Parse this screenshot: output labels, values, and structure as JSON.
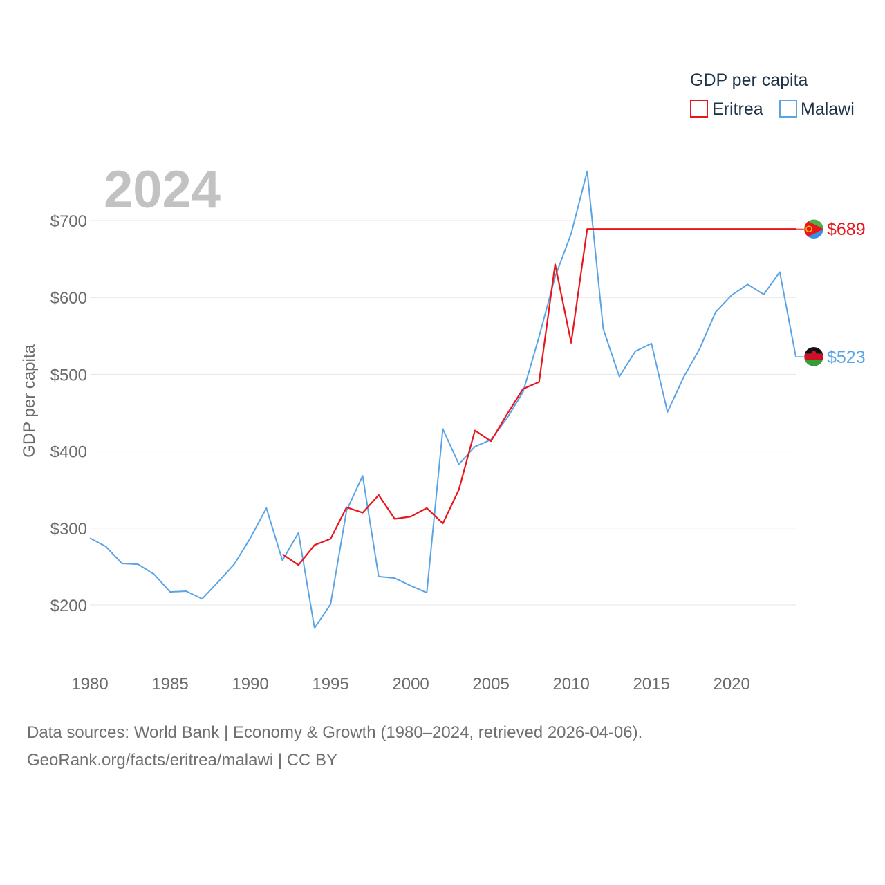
{
  "chart_data": {
    "type": "line",
    "title": "GDP per capita",
    "legend_title": "GDP per capita",
    "year_label": "2024",
    "ylabel": "GDP per capita",
    "xlabel": "",
    "xlim": [
      1980,
      2024
    ],
    "ylim": [
      140,
      780
    ],
    "x_ticks": [
      1980,
      1985,
      1990,
      1995,
      2000,
      2005,
      2010,
      2015,
      2020
    ],
    "y_ticks": [
      200,
      300,
      400,
      500,
      600,
      700
    ],
    "y_tick_labels": [
      "$200",
      "$300",
      "$400",
      "$500",
      "$600",
      "$700"
    ],
    "grid": true,
    "legend_position": "top-right",
    "series": [
      {
        "name": "Eritrea",
        "color": "#e8161b",
        "flag": "eritrea-flag",
        "end_label": "$689",
        "x": [
          1992,
          1993,
          1994,
          1995,
          1996,
          1997,
          1998,
          1999,
          2000,
          2001,
          2002,
          2003,
          2004,
          2005,
          2006,
          2007,
          2008,
          2009,
          2010,
          2011,
          2024
        ],
        "values": [
          266,
          252,
          278,
          286,
          327,
          320,
          343,
          312,
          315,
          326,
          306,
          350,
          427,
          413,
          448,
          481,
          490,
          643,
          541,
          689,
          689
        ]
      },
      {
        "name": "Malawi",
        "color": "#5aa4e6",
        "flag": "malawi-flag",
        "end_label": "$523",
        "x": [
          1980,
          1981,
          1982,
          1983,
          1984,
          1985,
          1986,
          1987,
          1988,
          1989,
          1990,
          1991,
          1992,
          1993,
          1994,
          1995,
          1996,
          1997,
          1998,
          1999,
          2000,
          2001,
          2002,
          2003,
          2004,
          2005,
          2006,
          2007,
          2008,
          2009,
          2010,
          2011,
          2012,
          2013,
          2014,
          2015,
          2016,
          2017,
          2018,
          2019,
          2020,
          2021,
          2022,
          2023,
          2024
        ],
        "values": [
          287,
          276,
          254,
          253,
          240,
          217,
          218,
          208,
          230,
          253,
          287,
          326,
          258,
          294,
          170,
          201,
          323,
          368,
          237,
          235,
          225,
          216,
          429,
          383,
          406,
          415,
          443,
          477,
          549,
          627,
          683,
          764,
          559,
          497,
          530,
          540,
          451,
          496,
          533,
          581,
          603,
          617,
          604,
          633,
          523
        ]
      }
    ]
  },
  "footer": {
    "sources": "Data sources: World Bank | Economy & Growth (1980–2024, retrieved 2026-04-06).",
    "credit": "GeoRank.org/facts/eritrea/malawi | CC BY"
  }
}
